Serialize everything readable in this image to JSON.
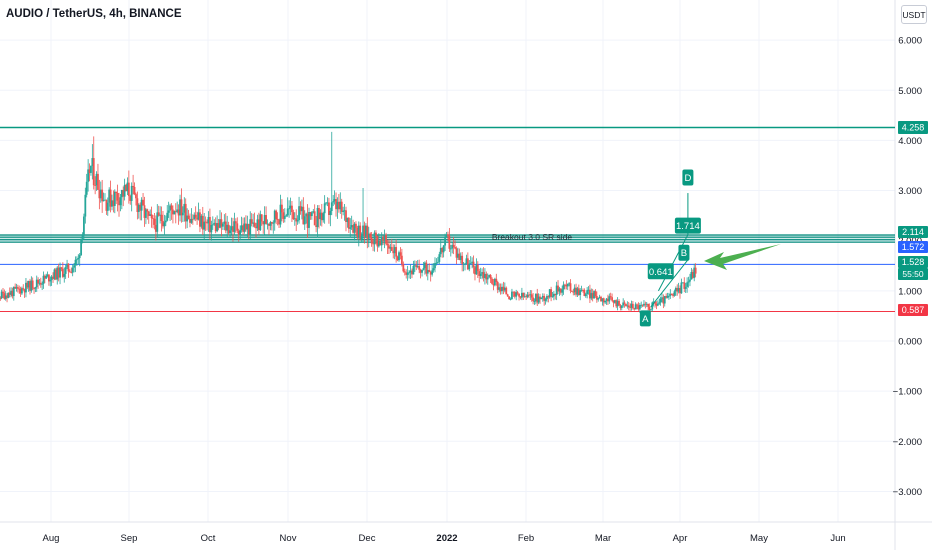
{
  "title": "AUDIO / TetherUS, 4h, BINANCE",
  "currency_button": "USDT",
  "chart_data": {
    "type": "candlestick",
    "symbol": "AUDIO / TetherUS",
    "interval": "4h",
    "exchange": "BINANCE",
    "ylim": [
      -3.6,
      6.6
    ],
    "yticks": [
      {
        "v": 6,
        "label": "6.000"
      },
      {
        "v": 5,
        "label": "5.000"
      },
      {
        "v": 4,
        "label": "4.000"
      },
      {
        "v": 3,
        "label": "3.000"
      },
      {
        "v": 2,
        "label": "2.000"
      },
      {
        "v": 1,
        "label": "1.000"
      },
      {
        "v": 0,
        "label": "0.000"
      },
      {
        "v": -1,
        "label": "−1.000"
      },
      {
        "v": -2,
        "label": "−2.000"
      },
      {
        "v": -3,
        "label": "−3.000"
      }
    ],
    "xticks": [
      "Aug",
      "Sep",
      "Oct",
      "Nov",
      "Dec",
      "2022",
      "Feb",
      "Mar",
      "Apr",
      "May",
      "Jun"
    ],
    "price_path": [
      {
        "m": 7.0,
        "p": 1.2
      },
      {
        "m": 7.2,
        "p": 0.85
      },
      {
        "m": 7.5,
        "p": 0.98
      },
      {
        "m": 7.8,
        "p": 1.15
      },
      {
        "m": 8.0,
        "p": 1.3
      },
      {
        "m": 8.25,
        "p": 1.45
      },
      {
        "m": 8.35,
        "p": 1.62
      },
      {
        "m": 8.5,
        "p": 3.5
      },
      {
        "m": 8.7,
        "p": 2.8
      },
      {
        "m": 9.0,
        "p": 3.0
      },
      {
        "m": 9.3,
        "p": 2.3
      },
      {
        "m": 9.6,
        "p": 2.7
      },
      {
        "m": 10.0,
        "p": 2.3
      },
      {
        "m": 10.5,
        "p": 2.25
      },
      {
        "m": 11.0,
        "p": 2.6
      },
      {
        "m": 11.3,
        "p": 2.4
      },
      {
        "m": 11.6,
        "p": 2.7
      },
      {
        "m": 11.9,
        "p": 2.2
      },
      {
        "m": 12.3,
        "p": 1.9
      },
      {
        "m": 12.5,
        "p": 1.4
      },
      {
        "m": 12.8,
        "p": 1.45
      },
      {
        "m": 13.0,
        "p": 2.0
      },
      {
        "m": 13.2,
        "p": 1.6
      },
      {
        "m": 13.5,
        "p": 1.3
      },
      {
        "m": 13.8,
        "p": 0.9
      },
      {
        "m": 14.2,
        "p": 0.85
      },
      {
        "m": 14.5,
        "p": 1.1
      },
      {
        "m": 14.9,
        "p": 0.9
      },
      {
        "m": 15.3,
        "p": 0.7
      },
      {
        "m": 15.6,
        "p": 0.68
      },
      {
        "m": 15.9,
        "p": 0.9
      },
      {
        "m": 16.1,
        "p": 1.2
      },
      {
        "m": 16.2,
        "p": 1.45
      }
    ],
    "horizontal_levels": [
      {
        "value": 4.258,
        "label": "4.258",
        "color": "#089981"
      },
      {
        "value": 2.114,
        "label": "2.114",
        "color": "#089981",
        "zone_low": 1.97,
        "zone_note": "Breakout 3.0 SR side"
      },
      {
        "value": 1.572,
        "label": "1.572",
        "color": "#2962ff"
      },
      {
        "value": 1.528,
        "label": "1.528",
        "color": "#089981",
        "subtext": "55:50"
      },
      {
        "value": 0.587,
        "label": "0.587",
        "color": "#f23645"
      }
    ],
    "annotations": [
      {
        "label": "A",
        "m": 15.55,
        "p": 0.45
      },
      {
        "label": "0.641",
        "m": 15.75,
        "p": 1.39
      },
      {
        "label": "B",
        "m": 16.05,
        "p": 1.76
      },
      {
        "label": "1.714",
        "m": 16.1,
        "p": 2.3
      },
      {
        "label": "D",
        "m": 16.1,
        "p": 3.26
      }
    ],
    "arrow": {
      "color": "#4caf50"
    }
  }
}
